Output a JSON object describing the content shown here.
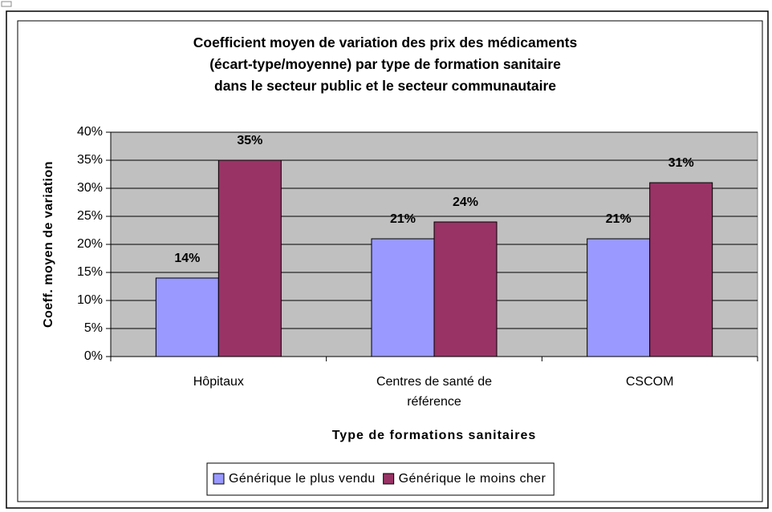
{
  "chart_data": {
    "type": "bar",
    "title": "Coefficient moyen de variation des prix des médicaments\n(écart-type/moyenne) par type de formation sanitaire\ndans le secteur public et le secteur communautaire",
    "x_label": "Type de formations sanitaires",
    "y_label": "Coeff. moyen de variation",
    "categories": [
      "Hôpitaux",
      "Centres de santé de référence",
      "CSCOM"
    ],
    "series": [
      {
        "name": "Générique le plus vendu",
        "color": "#9999ff",
        "values": [
          14,
          21,
          21
        ],
        "value_labels": [
          "14%",
          "21%",
          "21%"
        ]
      },
      {
        "name": "Générique le moins cher",
        "color": "#993366",
        "values": [
          35,
          24,
          31
        ],
        "value_labels": [
          "35%",
          "24%",
          "31%"
        ]
      }
    ],
    "ylim": [
      0,
      40
    ],
    "yticks": [
      {
        "value": 0,
        "label": "0%"
      },
      {
        "value": 5,
        "label": "5%"
      },
      {
        "value": 10,
        "label": "10%"
      },
      {
        "value": 15,
        "label": "15%"
      },
      {
        "value": 20,
        "label": "20%"
      },
      {
        "value": 25,
        "label": "25%"
      },
      {
        "value": 30,
        "label": "30%"
      },
      {
        "value": 35,
        "label": "35%"
      },
      {
        "value": 40,
        "label": "40%"
      }
    ],
    "grid": true,
    "plot_background": "#c0c0c0",
    "legend": "bottom"
  }
}
